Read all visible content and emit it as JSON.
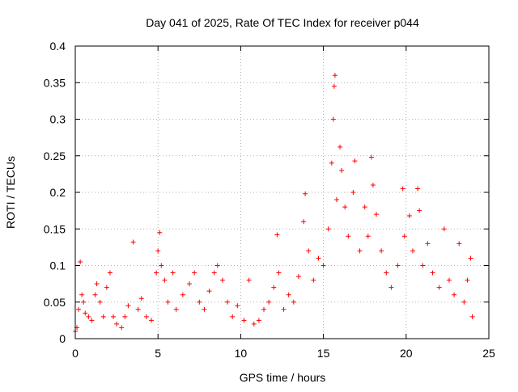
{
  "chart_data": {
    "type": "scatter",
    "title": "Day 041 of 2025, Rate Of TEC Index for receiver p044",
    "xlabel": "GPS time / hours",
    "ylabel": "ROTI / TECUs",
    "xlim": [
      0,
      25
    ],
    "ylim": [
      0,
      0.4
    ],
    "x_ticks": [
      0,
      5,
      10,
      15,
      20,
      25
    ],
    "x_tick_labels": [
      "0",
      "5",
      "10",
      "15",
      "20",
      "25"
    ],
    "y_ticks": [
      0,
      0.05,
      0.1,
      0.15,
      0.2,
      0.25,
      0.3,
      0.35,
      0.4
    ],
    "y_tick_labels": [
      "0",
      "0.05",
      "0.1",
      "0.15",
      "0.2",
      "0.25",
      "0.3",
      "0.35",
      "0.4"
    ],
    "grid": true,
    "marker": "+",
    "color": "#ff0000",
    "series": [
      {
        "name": "ROTI",
        "points": [
          [
            0.0,
            0.01
          ],
          [
            0.1,
            0.015
          ],
          [
            0.2,
            0.04
          ],
          [
            0.3,
            0.105
          ],
          [
            0.4,
            0.06
          ],
          [
            0.5,
            0.05
          ],
          [
            0.6,
            0.035
          ],
          [
            0.8,
            0.03
          ],
          [
            1.0,
            0.025
          ],
          [
            1.2,
            0.06
          ],
          [
            1.3,
            0.075
          ],
          [
            1.5,
            0.05
          ],
          [
            1.7,
            0.03
          ],
          [
            1.9,
            0.07
          ],
          [
            2.1,
            0.09
          ],
          [
            2.3,
            0.03
          ],
          [
            2.5,
            0.02
          ],
          [
            2.8,
            0.015
          ],
          [
            3.0,
            0.03
          ],
          [
            3.2,
            0.045
          ],
          [
            3.5,
            0.132
          ],
          [
            3.8,
            0.04
          ],
          [
            4.0,
            0.055
          ],
          [
            4.3,
            0.03
          ],
          [
            4.6,
            0.025
          ],
          [
            4.9,
            0.09
          ],
          [
            5.0,
            0.12
          ],
          [
            5.1,
            0.145
          ],
          [
            5.2,
            0.1
          ],
          [
            5.4,
            0.08
          ],
          [
            5.6,
            0.05
          ],
          [
            5.9,
            0.09
          ],
          [
            6.1,
            0.04
          ],
          [
            6.5,
            0.06
          ],
          [
            6.9,
            0.075
          ],
          [
            7.2,
            0.09
          ],
          [
            7.5,
            0.05
          ],
          [
            7.8,
            0.04
          ],
          [
            8.1,
            0.065
          ],
          [
            8.4,
            0.09
          ],
          [
            8.6,
            0.1
          ],
          [
            8.9,
            0.08
          ],
          [
            9.2,
            0.05
          ],
          [
            9.5,
            0.03
          ],
          [
            9.8,
            0.045
          ],
          [
            10.2,
            0.025
          ],
          [
            10.5,
            0.08
          ],
          [
            10.8,
            0.02
          ],
          [
            11.1,
            0.025
          ],
          [
            11.4,
            0.04
          ],
          [
            11.7,
            0.05
          ],
          [
            12.0,
            0.07
          ],
          [
            12.2,
            0.142
          ],
          [
            12.3,
            0.09
          ],
          [
            12.6,
            0.04
          ],
          [
            12.9,
            0.06
          ],
          [
            13.2,
            0.05
          ],
          [
            13.5,
            0.085
          ],
          [
            13.8,
            0.16
          ],
          [
            13.9,
            0.198
          ],
          [
            14.1,
            0.12
          ],
          [
            14.4,
            0.08
          ],
          [
            14.7,
            0.11
          ],
          [
            15.0,
            0.1
          ],
          [
            15.3,
            0.15
          ],
          [
            15.5,
            0.24
          ],
          [
            15.6,
            0.3
          ],
          [
            15.65,
            0.345
          ],
          [
            15.7,
            0.36
          ],
          [
            15.8,
            0.19
          ],
          [
            16.0,
            0.262
          ],
          [
            16.1,
            0.23
          ],
          [
            16.3,
            0.18
          ],
          [
            16.5,
            0.14
          ],
          [
            16.8,
            0.2
          ],
          [
            16.9,
            0.243
          ],
          [
            17.2,
            0.12
          ],
          [
            17.5,
            0.18
          ],
          [
            17.7,
            0.14
          ],
          [
            17.9,
            0.248
          ],
          [
            18.0,
            0.21
          ],
          [
            18.2,
            0.17
          ],
          [
            18.5,
            0.12
          ],
          [
            18.8,
            0.09
          ],
          [
            19.1,
            0.07
          ],
          [
            19.5,
            0.1
          ],
          [
            19.8,
            0.205
          ],
          [
            19.9,
            0.14
          ],
          [
            20.2,
            0.168
          ],
          [
            20.4,
            0.12
          ],
          [
            20.7,
            0.205
          ],
          [
            20.8,
            0.175
          ],
          [
            21.0,
            0.1
          ],
          [
            21.3,
            0.13
          ],
          [
            21.6,
            0.09
          ],
          [
            22.0,
            0.07
          ],
          [
            22.3,
            0.15
          ],
          [
            22.6,
            0.08
          ],
          [
            22.9,
            0.06
          ],
          [
            23.2,
            0.13
          ],
          [
            23.5,
            0.05
          ],
          [
            23.7,
            0.08
          ],
          [
            23.9,
            0.11
          ],
          [
            24.0,
            0.03
          ]
        ]
      }
    ]
  }
}
